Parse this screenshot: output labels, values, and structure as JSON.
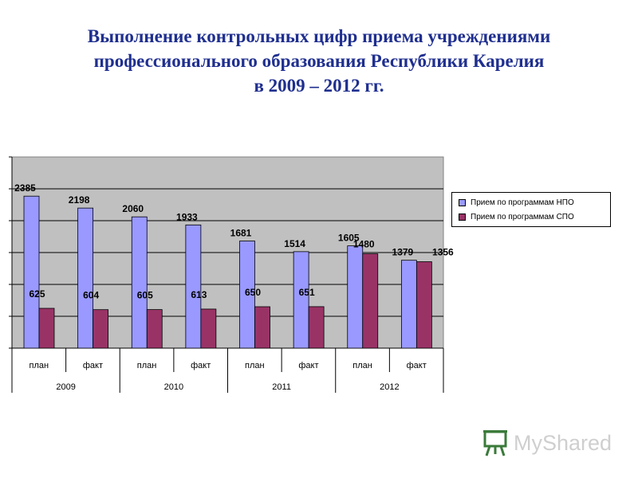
{
  "title_lines": [
    "Выполнение контрольных цифр приема учреждениями",
    "профессионального образования Республики Карелия",
    "в 2009 – 2012 гг."
  ],
  "watermark_text": "MyShared",
  "chart_data": {
    "type": "bar",
    "grid": true,
    "legend_position": "right",
    "ylim": [
      0,
      3000
    ],
    "categories": [
      "план",
      "факт",
      "план",
      "факт",
      "план",
      "факт",
      "план",
      "факт"
    ],
    "groups": [
      "2009",
      "2010",
      "2011",
      "2012"
    ],
    "series": [
      {
        "name": "Прием по программам НПО",
        "color": "#9999ff",
        "values": [
          2385,
          2198,
          2060,
          1933,
          1681,
          1514,
          1605,
          1379
        ]
      },
      {
        "name": "Прием по программам СПО",
        "color": "#993366",
        "values": [
          625,
          604,
          605,
          613,
          650,
          651,
          1480,
          1356
        ]
      }
    ]
  }
}
